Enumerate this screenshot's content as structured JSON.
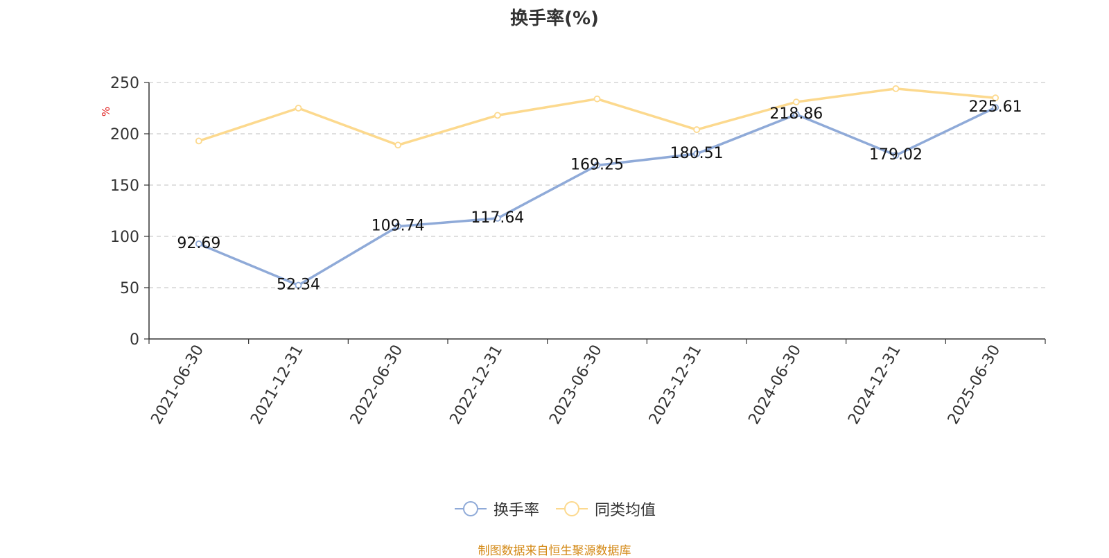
{
  "chart_data": {
    "type": "line",
    "title": "换手率(%)",
    "ylabel": "%",
    "ylim": [
      0,
      250
    ],
    "yticks": [
      0,
      50,
      100,
      150,
      200,
      250
    ],
    "grid": true,
    "categories": [
      "2021-06-30",
      "2021-12-31",
      "2022-06-30",
      "2022-12-31",
      "2023-06-30",
      "2023-12-31",
      "2024-06-30",
      "2024-12-31",
      "2025-06-30"
    ],
    "series": [
      {
        "name": "换手率",
        "color": "#8faad8",
        "values": [
          92.69,
          52.34,
          109.74,
          117.64,
          169.25,
          180.51,
          218.86,
          179.02,
          225.61
        ],
        "labels": [
          "92.69",
          "52.34",
          "109.74",
          "117.64",
          "169.25",
          "180.51",
          "218.86",
          "179.02",
          "225.61"
        ]
      },
      {
        "name": "同类均值",
        "color": "#fcd98e",
        "values": [
          193,
          225,
          189,
          218,
          234,
          204,
          231,
          244,
          235
        ]
      }
    ],
    "legend_position": "bottom-center"
  },
  "source": "制图数据来自恒生聚源数据库"
}
